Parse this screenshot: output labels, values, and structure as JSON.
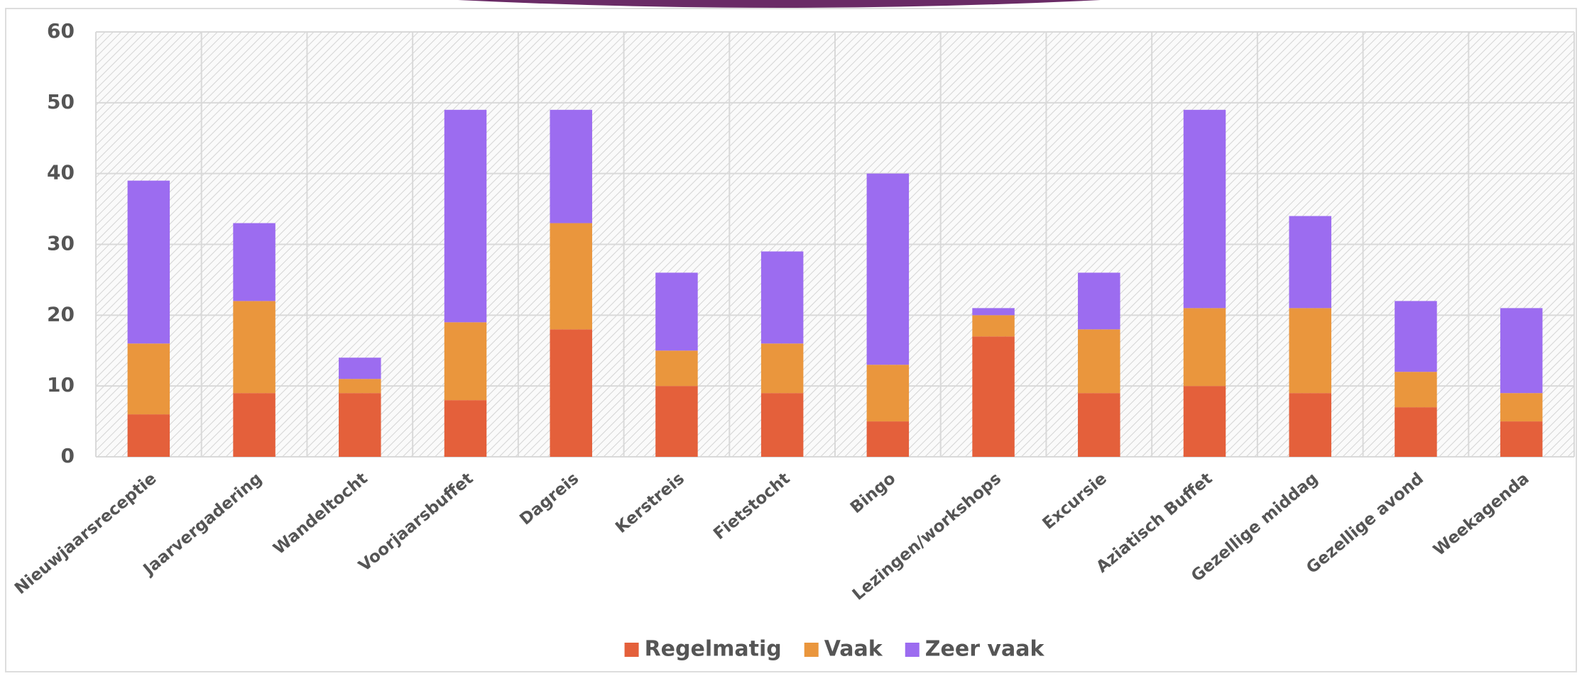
{
  "chart_data": {
    "type": "stacked_bar",
    "categories": [
      "Nieuwjaarsreceptie",
      "Jaarvergadering",
      "Wandeltocht",
      "Voorjaarsbuffet",
      "Dagreis",
      "Kerstreis",
      "Fietstocht",
      "Bingo",
      "Lezingen/workshops",
      "Excursie",
      "Aziatisch Buffet",
      "Gezellige middag",
      "Gezellige avond",
      "Weekagenda"
    ],
    "series": [
      {
        "name": "Regelmatig",
        "color": "#e4603b",
        "values": [
          6,
          9,
          9,
          8,
          18,
          10,
          9,
          5,
          17,
          9,
          10,
          9,
          7,
          5
        ]
      },
      {
        "name": "Vaak",
        "color": "#ea963d",
        "values": [
          10,
          13,
          2,
          11,
          15,
          5,
          7,
          8,
          3,
          9,
          11,
          12,
          5,
          4
        ]
      },
      {
        "name": "Zeer vaak",
        "color": "#9c6cf0",
        "values": [
          23,
          11,
          3,
          30,
          16,
          11,
          13,
          27,
          1,
          8,
          28,
          13,
          10,
          12
        ]
      }
    ],
    "ylim": [
      0,
      60
    ],
    "yticks": [
      0,
      10,
      20,
      30,
      40,
      50,
      60
    ],
    "grid": true,
    "legend": "bottom"
  }
}
